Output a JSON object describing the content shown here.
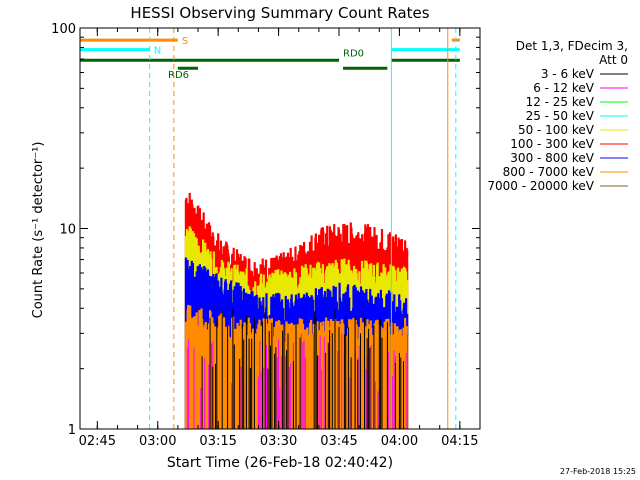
{
  "chart_data": {
    "type": "line",
    "title": "HESSI Observing Summary Count Rates",
    "xlabel": "Start Time (26-Feb-18 02:40:42)",
    "ylabel": "Count Rate (s⁻¹ detector⁻¹)",
    "yscale": "log",
    "ylim": [
      1,
      100
    ],
    "xlim": [
      "02:40:42",
      "04:20"
    ],
    "x_ticks": [
      "02:45",
      "03:00",
      "03:15",
      "03:30",
      "03:45",
      "04:00",
      "04:15"
    ],
    "y_ticks": [
      "1",
      "10",
      "100"
    ],
    "legend": {
      "placement": "right",
      "header": [
        "Det 1,3, FDecim 3,",
        "Att 0"
      ],
      "entries": [
        {
          "name": "3 - 6 keV",
          "color": "#000000"
        },
        {
          "name": "6 - 12 keV",
          "color": "#ff00ff"
        },
        {
          "name": "12 - 25 keV",
          "color": "#00ff00"
        },
        {
          "name": "25 - 50 keV",
          "color": "#00ffff"
        },
        {
          "name": "50 - 100 keV",
          "color": "#e8e800"
        },
        {
          "name": "100 - 300 keV",
          "color": "#ff0000"
        },
        {
          "name": "300 - 800 keV",
          "color": "#0000ff"
        },
        {
          "name": "800 - 7000 keV",
          "color": "#ff8c00"
        },
        {
          "name": "7000 - 20000 keV",
          "color": "#8b5a2b"
        }
      ]
    },
    "data_window": {
      "start": "03:07",
      "end": "04:02"
    },
    "series": [
      {
        "name": "100 - 300 keV",
        "color": "#ff0000",
        "approx_top": [
          [
            "03:07",
            14
          ],
          [
            "03:10",
            11
          ],
          [
            "03:13",
            9
          ],
          [
            "03:16",
            7.5
          ],
          [
            "03:20",
            6.5
          ],
          [
            "03:25",
            6
          ],
          [
            "03:30",
            6.2
          ],
          [
            "03:35",
            7
          ],
          [
            "03:40",
            8.5
          ],
          [
            "03:45",
            9
          ],
          [
            "03:50",
            9
          ],
          [
            "03:55",
            8.5
          ],
          [
            "04:01",
            8
          ]
        ]
      },
      {
        "name": "50 - 100 keV",
        "color": "#e8e800",
        "approx_top": [
          [
            "03:07",
            9
          ],
          [
            "03:15",
            6
          ],
          [
            "03:25",
            5
          ],
          [
            "03:35",
            5.5
          ],
          [
            "03:45",
            6
          ],
          [
            "04:01",
            5.5
          ]
        ]
      },
      {
        "name": "300 - 800 keV",
        "color": "#0000ff",
        "approx_top": [
          [
            "03:07",
            6
          ],
          [
            "03:15",
            5
          ],
          [
            "03:25",
            4
          ],
          [
            "03:35",
            4
          ],
          [
            "03:45",
            4.5
          ],
          [
            "04:01",
            4
          ]
        ]
      },
      {
        "name": "800 - 7000 keV",
        "color": "#ff8c00",
        "approx_top": [
          [
            "03:07",
            3.5
          ],
          [
            "03:20",
            3
          ],
          [
            "03:40",
            3
          ],
          [
            "04:01",
            3
          ]
        ]
      }
    ],
    "markers": [
      {
        "type": "hline",
        "label": "S",
        "color": "#ff8c00",
        "value": 87,
        "segments": [
          [
            "02:40:42",
            "03:05"
          ],
          [
            "04:13",
            "04:15"
          ]
        ]
      },
      {
        "type": "hline",
        "label": "N",
        "color": "#00ffff",
        "value": 78,
        "segments": [
          [
            "02:40:42",
            "02:58"
          ],
          [
            "03:58",
            "04:15"
          ]
        ]
      },
      {
        "type": "hline",
        "label": "RD0",
        "color": "#006400",
        "value": 69,
        "segments": [
          [
            "02:40:42",
            "03:45"
          ],
          [
            "03:58",
            "04:15"
          ]
        ]
      },
      {
        "type": "hline",
        "label": "RD6",
        "color": "#006400",
        "value": 63,
        "segments": [
          [
            "03:05",
            "03:10"
          ],
          [
            "03:46",
            "03:57"
          ]
        ]
      },
      {
        "type": "vline",
        "color": "#00ffff",
        "time": "02:40:42"
      },
      {
        "type": "vline",
        "color": "#00ffff",
        "style": "dashed",
        "time": "02:58"
      },
      {
        "type": "vline",
        "color": "#ff8c00",
        "style": "dashed",
        "time": "03:04"
      },
      {
        "type": "vline",
        "color": "#00ffff",
        "time": "03:58"
      },
      {
        "type": "vline",
        "color": "#ff8c00",
        "time": "04:12"
      },
      {
        "type": "vline",
        "color": "#00ffff",
        "style": "dashed",
        "time": "04:14"
      }
    ]
  },
  "footer": {
    "timestamp": "27-Feb-2018 15:25"
  }
}
